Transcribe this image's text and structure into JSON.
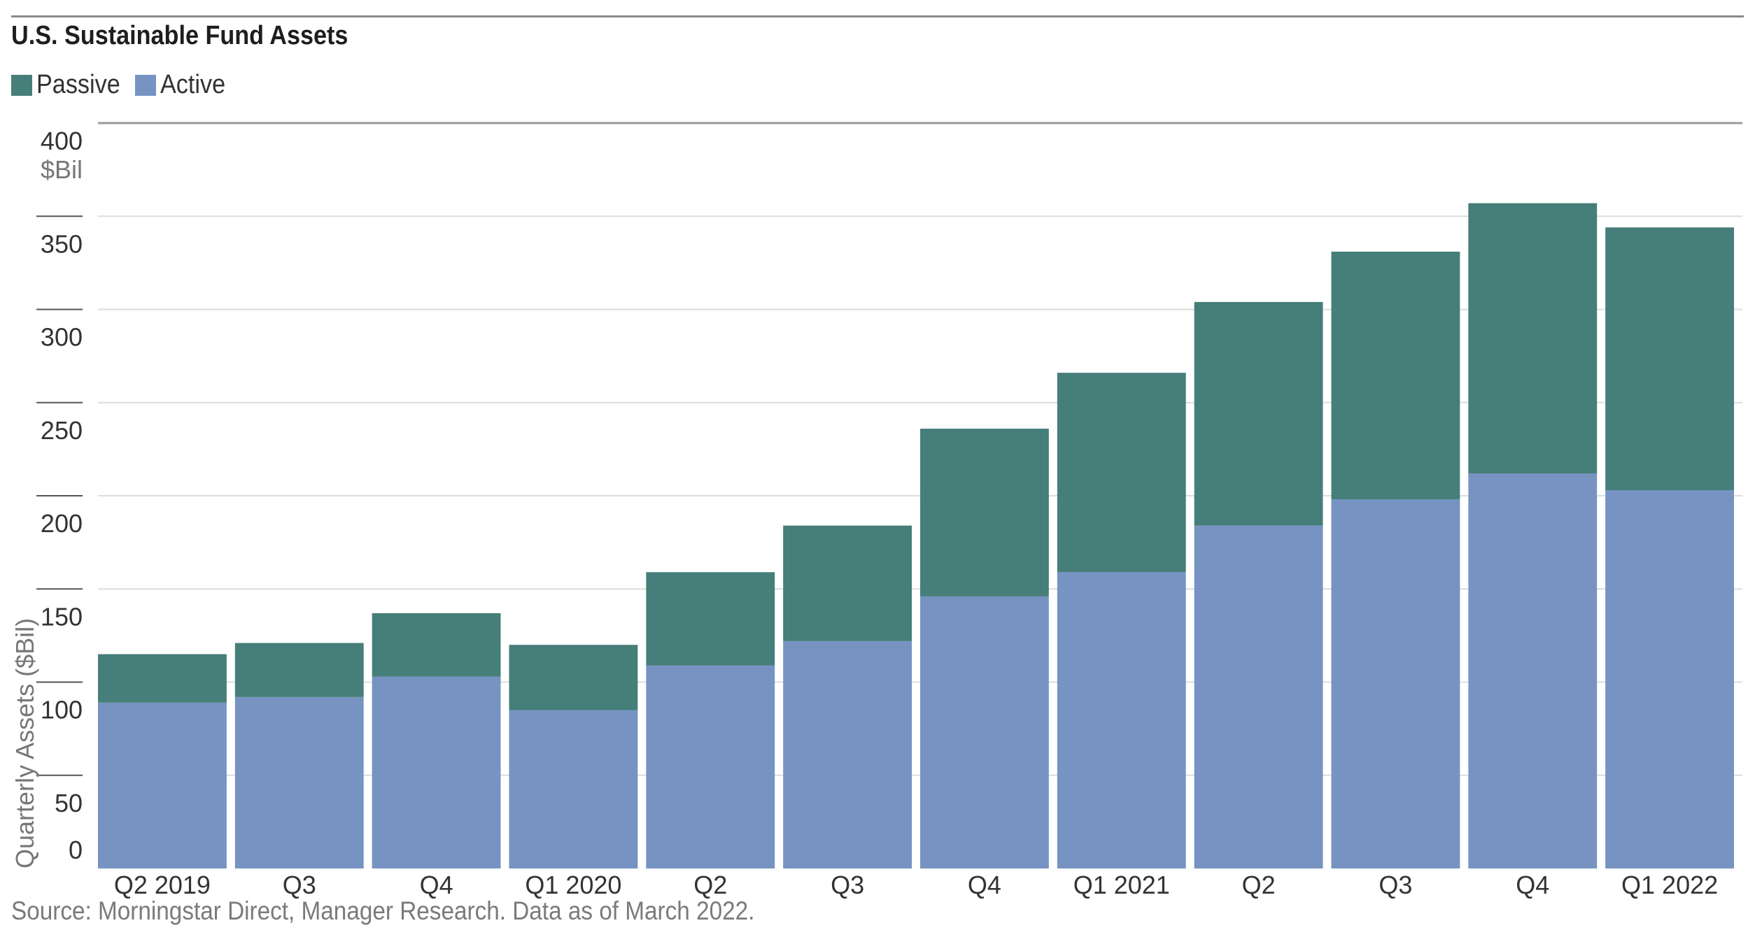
{
  "chart_data": {
    "type": "bar",
    "stacked": true,
    "title": "U.S. Sustainable Fund Assets",
    "ylabel": "Quarterly Assets ($Bil)",
    "yunit": "$Bil",
    "ylim": [
      0,
      400
    ],
    "yticks": [
      0,
      50,
      100,
      150,
      200,
      250,
      300,
      350,
      400
    ],
    "categories": [
      "Q2 2019",
      "Q3",
      "Q4",
      "Q1 2020",
      "Q2",
      "Q3",
      "Q4",
      "Q1 2021",
      "Q2",
      "Q3",
      "Q4",
      "Q1 2022"
    ],
    "series": [
      {
        "name": "Active",
        "color": "#7693c2",
        "values": [
          89,
          92,
          103,
          85,
          109,
          122,
          146,
          159,
          184,
          198,
          212,
          203
        ]
      },
      {
        "name": "Passive",
        "color": "#467e79",
        "values": [
          26,
          29,
          34,
          35,
          50,
          62,
          90,
          107,
          120,
          133,
          145,
          141
        ]
      }
    ],
    "legend": {
      "position": "top-left",
      "order": [
        "Passive",
        "Active"
      ]
    },
    "grid": true,
    "source": "Source: Morningstar Direct, Manager Research. Data as of March 2022."
  }
}
